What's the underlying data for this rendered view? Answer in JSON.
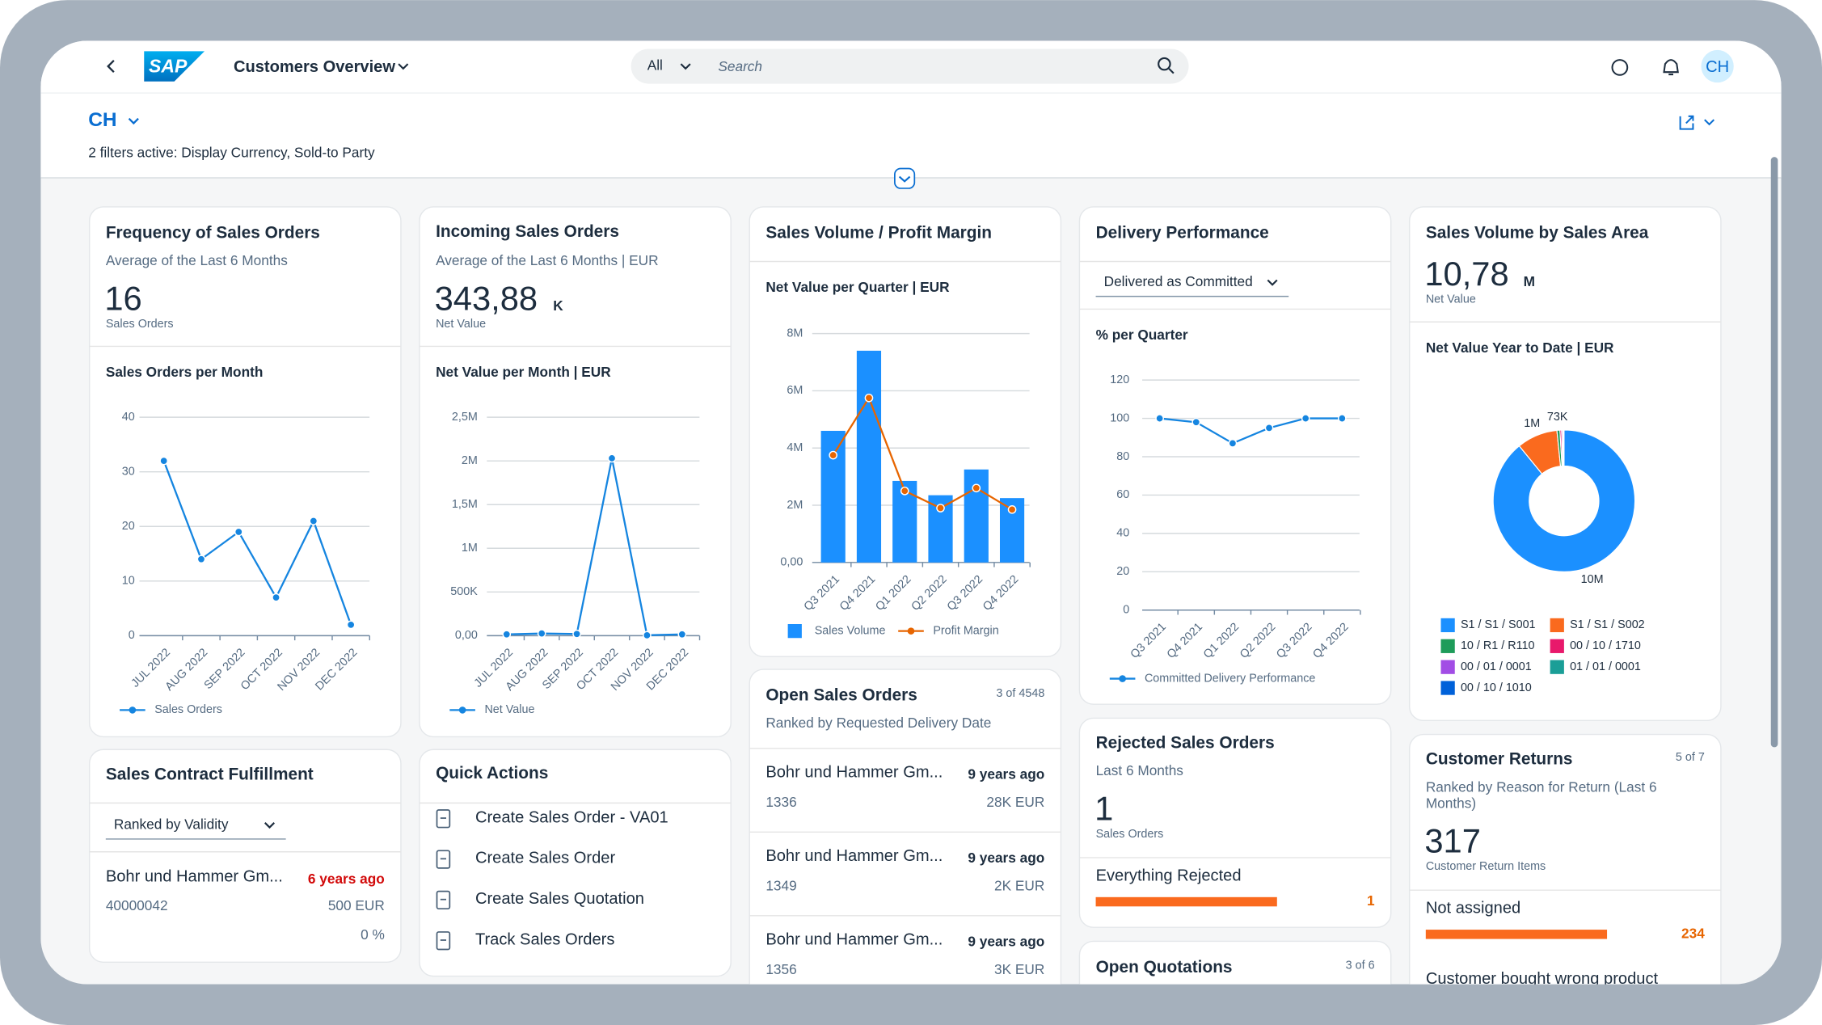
{
  "shell": {
    "logo": "SAP",
    "app_title": "Customers Overview",
    "search_scope": "All",
    "search_placeholder": "Search",
    "avatar": "CH"
  },
  "header": {
    "title": "CH",
    "filters": "2 filters active: Display Currency, Sold-to Party"
  },
  "cards": [
    {
      "title": "Frequency of Sales Orders",
      "subtitle": "Average of the Last 6 Months",
      "kpi": "16",
      "kpi_label": "Sales Orders",
      "chart": {
        "type": "line",
        "title": "Sales Orders per Month",
        "categories": [
          "JUL 2022",
          "AUG 2022",
          "SEP 2022",
          "OCT 2022",
          "NOV 2022",
          "DEC 2022"
        ],
        "series": [
          {
            "name": "Sales Orders",
            "color": "#1585e0",
            "mark": "line",
            "values": [
              32,
              14,
              19,
              7,
              21,
              2
            ]
          }
        ],
        "ylim": [
          0,
          40
        ],
        "yticks": [
          0,
          10,
          20,
          30,
          40
        ],
        "grid": true
      }
    },
    {
      "title": "Incoming Sales Orders",
      "subtitle": "Average of the Last 6 Months | EUR",
      "kpi": "343,88",
      "kpi_unit": "K",
      "kpi_label": "Net Value",
      "chart": {
        "type": "line",
        "title": "Net Value per Month | EUR",
        "categories": [
          "JUL 2022",
          "AUG 2022",
          "SEP 2022",
          "OCT 2022",
          "NOV 2022",
          "DEC 2022"
        ],
        "series": [
          {
            "name": "Net Value",
            "color": "#1585e0",
            "mark": "line",
            "values": [
              15000,
              25000,
              20000,
              2030000,
              5000,
              15000
            ]
          }
        ],
        "ylim": [
          0,
          2500000
        ],
        "yticks": [
          {
            "value": 0,
            "label": "0,00"
          },
          {
            "value": 500000,
            "label": "500K"
          },
          {
            "value": 1000000,
            "label": "1M"
          },
          {
            "value": 1500000,
            "label": "1,5M"
          },
          {
            "value": 2000000,
            "label": "2M"
          },
          {
            "value": 2500000,
            "label": "2,5M"
          }
        ],
        "grid": true
      }
    },
    {
      "title": "Sales Volume / Profit Margin",
      "chart": {
        "type": "bar",
        "title": "Net Value per Quarter | EUR",
        "categories": [
          "Q3 2021",
          "Q4 2021",
          "Q1 2022",
          "Q2 2022",
          "Q3 2022",
          "Q4 2022"
        ],
        "series": [
          {
            "name": "Sales Volume",
            "color": "#1b90ff",
            "mark": "bar",
            "values": [
              4600000,
              7400000,
              2850000,
              2350000,
              3250000,
              2250000
            ]
          },
          {
            "name": "Profit Margin",
            "color": "#e76500",
            "mark": "line",
            "values": [
              3750000,
              5750000,
              2500000,
              1900000,
              2600000,
              1850000
            ]
          }
        ],
        "ylim": [
          0,
          8000000
        ],
        "yticks": [
          {
            "value": 0,
            "label": "0,00"
          },
          {
            "value": 2000000,
            "label": "2M"
          },
          {
            "value": 4000000,
            "label": "4M"
          },
          {
            "value": 6000000,
            "label": "6M"
          },
          {
            "value": 8000000,
            "label": "8M"
          }
        ],
        "grid": true
      }
    },
    {
      "title": "Delivery Performance",
      "select": "Delivered as Committed",
      "chart": {
        "type": "line",
        "title": "% per Quarter",
        "categories": [
          "Q3 2021",
          "Q4 2021",
          "Q1 2022",
          "Q2 2022",
          "Q3 2022",
          "Q4 2022"
        ],
        "series": [
          {
            "name": "Committed Delivery Performance",
            "color": "#1585e0",
            "mark": "line",
            "values": [
              100,
              98,
              87,
              95,
              100,
              100
            ]
          }
        ],
        "ylim": [
          0,
          120
        ],
        "yticks": [
          0,
          20,
          40,
          60,
          80,
          100,
          120
        ],
        "grid": true
      }
    },
    {
      "title": "Sales Volume by Sales Area",
      "kpi": "10,78",
      "kpi_unit": "M",
      "kpi_label": "Net Value",
      "chart": {
        "type": "donut",
        "title": "Net Value Year to Date | EUR",
        "categories": [
          "S1 / S1 / S001",
          "S1 / S1 / S002",
          "10 / R1 / R110",
          "00 / 10 / 1710",
          "00 / 01 / 0001",
          "01 / 01 / 0001",
          "00 / 10 / 1010"
        ],
        "values": [
          9600000,
          1000000,
          73000,
          40000,
          30000,
          20000,
          10000
        ],
        "value_labels": [
          "10M",
          "1M",
          "73K",
          null,
          null,
          null,
          null
        ],
        "colors": [
          "#1b90ff",
          "#fa6a1e",
          "#1e9c5a",
          "#e8196b",
          "#a24de5",
          "#1a9e97",
          "#0061d9"
        ]
      }
    },
    {
      "title": "Sales Contract Fulfillment",
      "select": "Ranked by Validity",
      "items": [
        {
          "name": "Bohr und Hammer Gm...",
          "age": "6 years ago",
          "id": "40000042",
          "amount": "500 EUR",
          "percent": "0 %"
        }
      ]
    },
    {
      "title": "Quick Actions",
      "actions": [
        "Create Sales Order - VA01",
        "Create Sales Order",
        "Create Sales Quotation",
        "Track Sales Orders"
      ]
    },
    {
      "title": "Open Sales Orders",
      "count": "3 of 4548",
      "subtitle": "Ranked by Requested Delivery Date",
      "items": [
        {
          "name": "Bohr und Hammer Gm...",
          "age": "9 years ago",
          "id": "1336",
          "amount": "28K EUR"
        },
        {
          "name": "Bohr und Hammer Gm...",
          "age": "9 years ago",
          "id": "1349",
          "amount": "2K EUR"
        },
        {
          "name": "Bohr und Hammer Gm...",
          "age": "9 years ago",
          "id": "1356",
          "amount": "3K EUR"
        }
      ]
    },
    {
      "title": "Rejected Sales Orders",
      "subtitle": "Last 6 Months",
      "kpi": "1",
      "kpi_label": "Sales Orders",
      "bar_item": {
        "name": "Everything Rejected",
        "value": "1"
      }
    },
    {
      "title": "Customer Returns",
      "count": "5 of 7",
      "subtitle_lines": [
        "Ranked by Reason for Return (Last 6",
        "Months)"
      ],
      "kpi": "317",
      "kpi_label": "Customer Return Items",
      "bar_item": {
        "name": "Not assigned",
        "value": "234"
      },
      "next_item": "Customer bought wrong product"
    },
    {
      "title": "Open Quotations",
      "count": "3 of 6"
    }
  ]
}
